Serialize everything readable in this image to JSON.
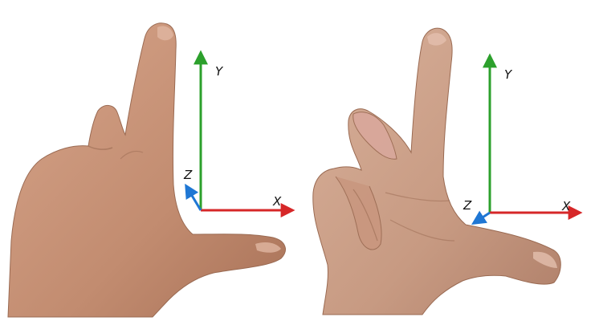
{
  "figure": {
    "left_frame": {
      "labels": {
        "x": "X",
        "y": "Y",
        "z": "Z"
      }
    },
    "right_frame": {
      "labels": {
        "x": "X",
        "y": "Y",
        "z": "Z"
      }
    }
  },
  "colors": {
    "x_axis": "#d62728",
    "y_axis": "#2ca02c",
    "z_axis": "#1f77d4",
    "skin": "#c8957a",
    "skin_shadow": "#a9735c",
    "skin_light": "#dcae95"
  },
  "icons": [
    "left-hand-image",
    "right-hand-image"
  ]
}
